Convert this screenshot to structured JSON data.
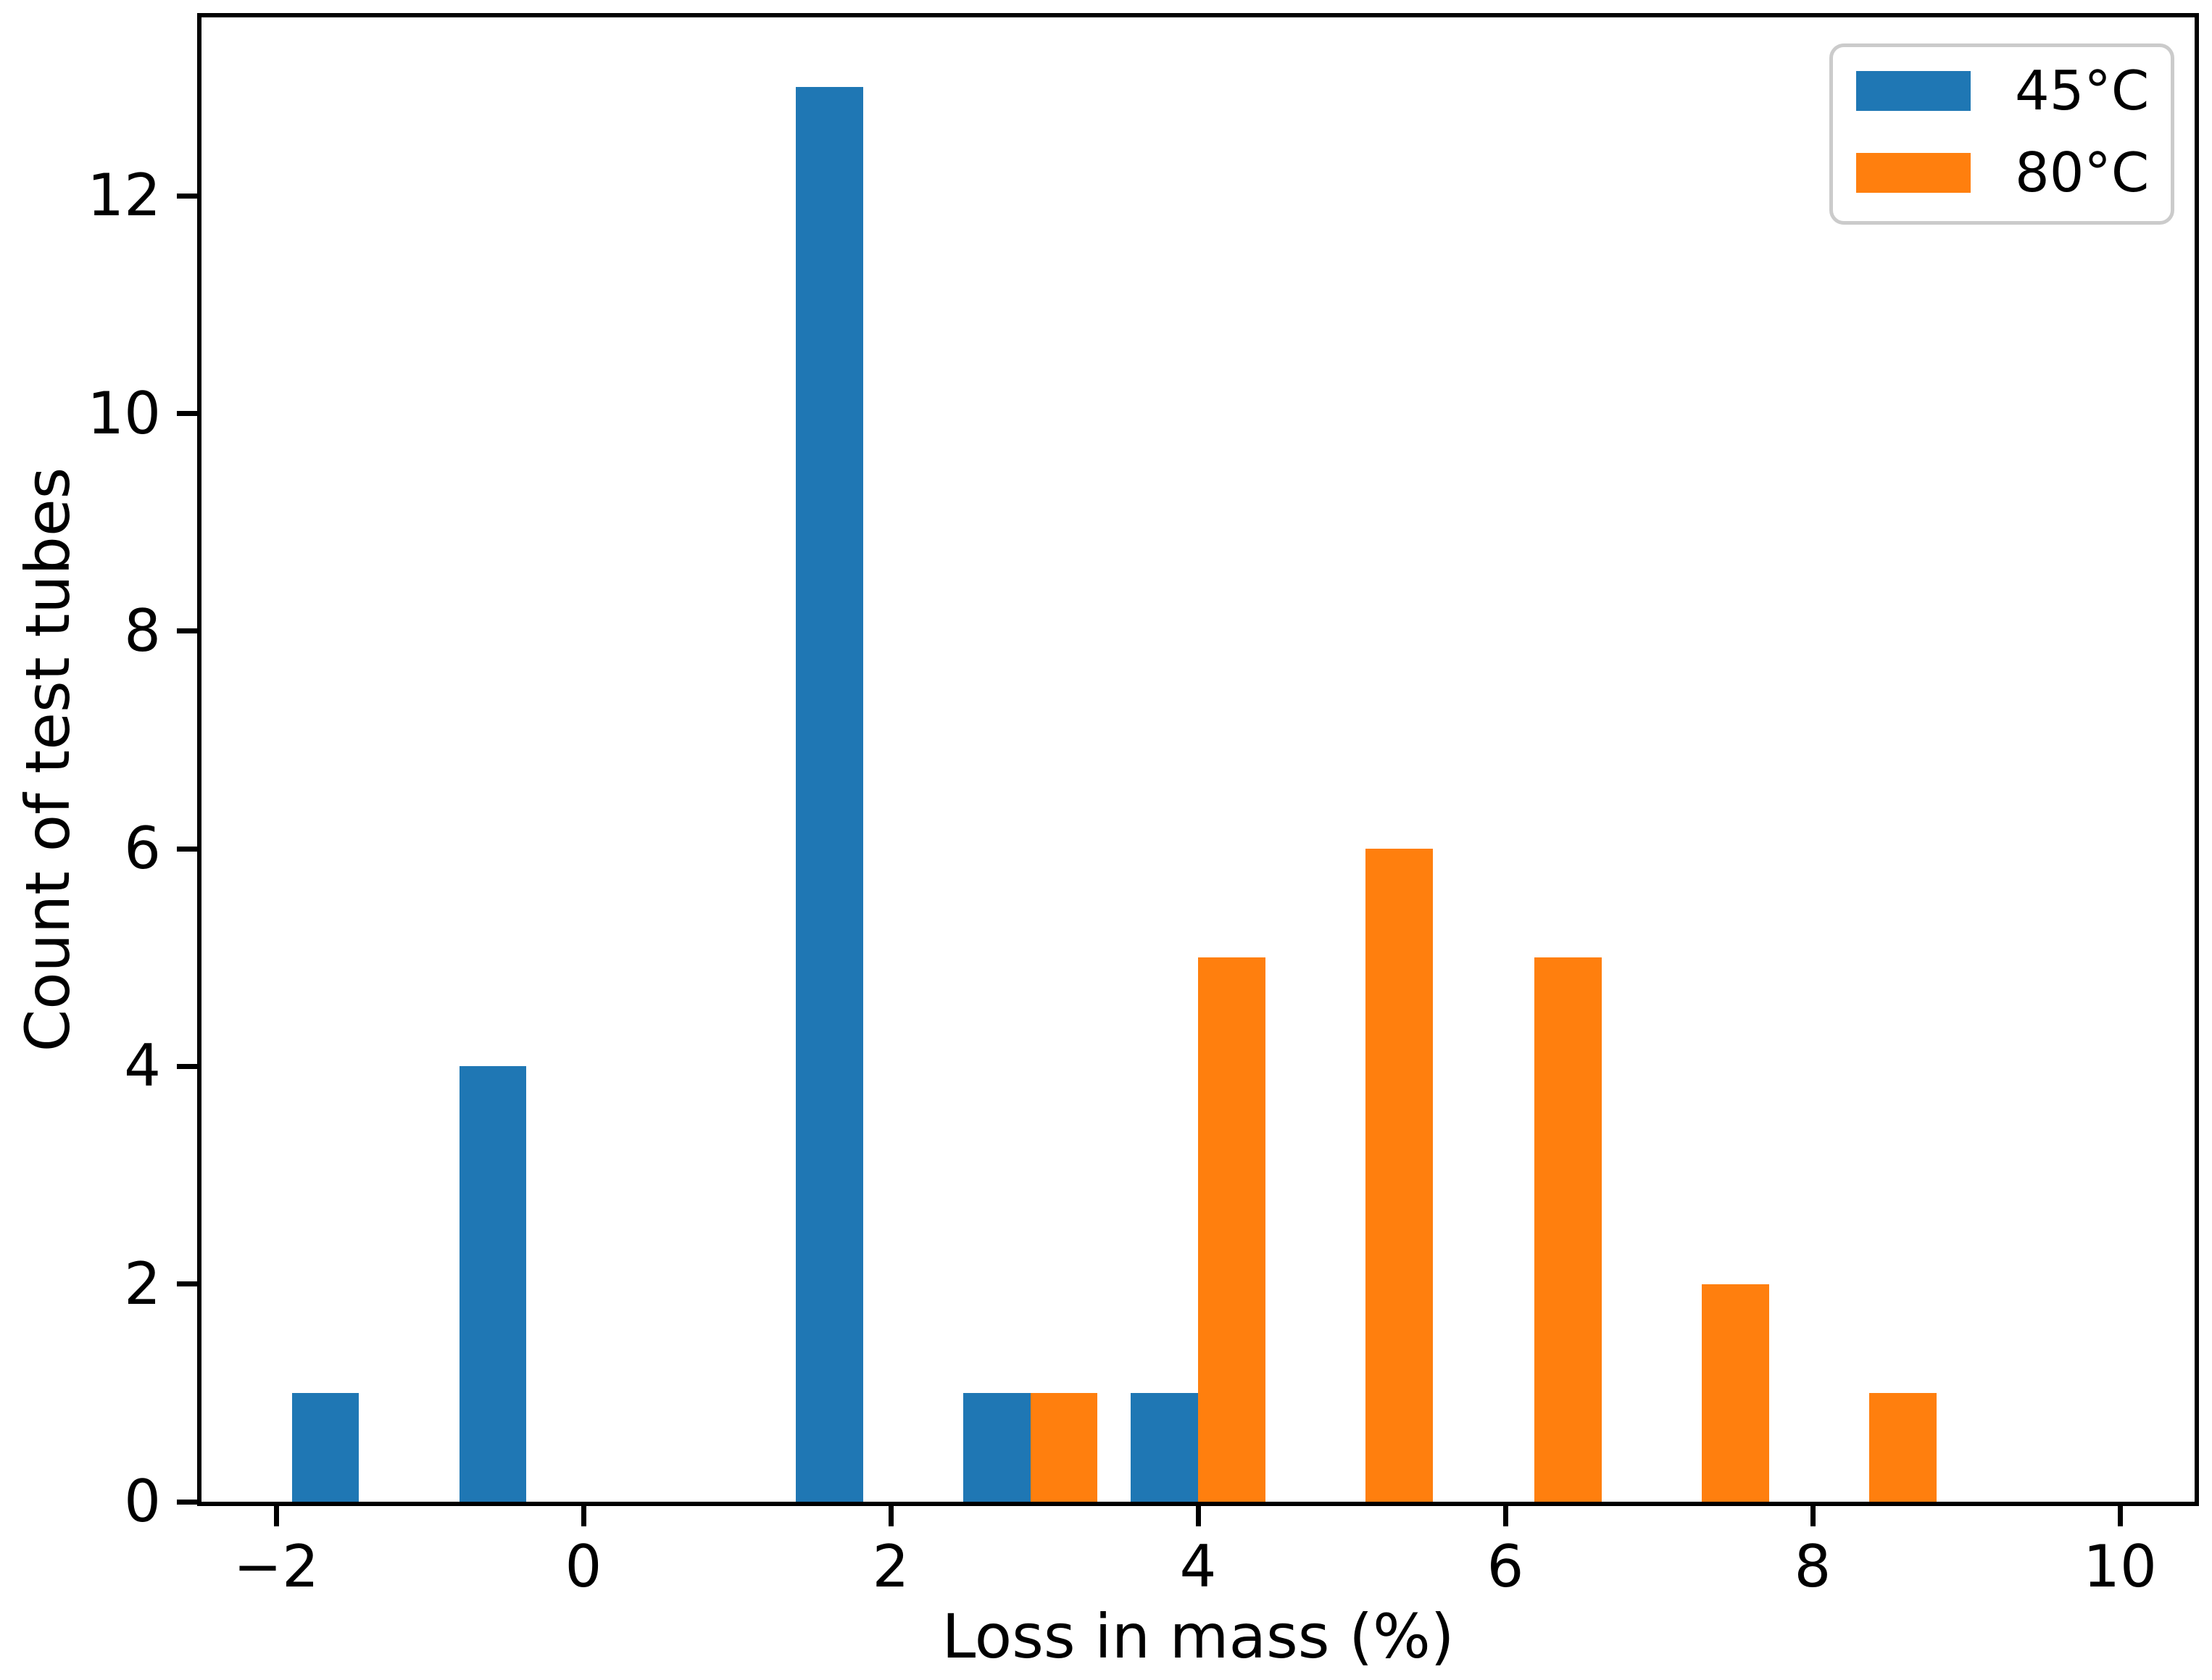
{
  "chart_data": {
    "type": "bar",
    "subtype": "grouped-histogram",
    "title": "",
    "xlabel": "Loss in mass (%)",
    "ylabel": "Count of test tubes",
    "xlim": [
      -2.486,
      10.486
    ],
    "ylim": [
      0,
      13.64
    ],
    "grid": false,
    "bin_edges": [
      -2.01,
      -0.92,
      0.18,
      1.27,
      2.36,
      3.46,
      4.55,
      5.64,
      6.73,
      7.83,
      8.92
    ],
    "bin_centers": [
      -1.46,
      -0.37,
      0.72,
      1.82,
      2.91,
      4.0,
      5.09,
      6.19,
      7.28,
      8.37
    ],
    "bar_width": 0.437,
    "series": [
      {
        "id": "45c",
        "name": "45°C",
        "color": "#1f77b4",
        "offset": -0.2185,
        "values": [
          1,
          4,
          0,
          13,
          1,
          1,
          0,
          0,
          0,
          0
        ]
      },
      {
        "id": "80c",
        "name": "80°C",
        "color": "#ff7f0e",
        "offset": 0.2185,
        "values": [
          0,
          0,
          0,
          0,
          1,
          5,
          6,
          5,
          2,
          1
        ]
      }
    ],
    "x_ticks": [
      -2,
      0,
      2,
      4,
      6,
      8,
      10
    ],
    "x_tick_labels": [
      "−2",
      "0",
      "2",
      "4",
      "6",
      "8",
      "10"
    ],
    "y_ticks": [
      0,
      2,
      4,
      6,
      8,
      10,
      12
    ],
    "y_tick_labels": [
      "0",
      "2",
      "4",
      "6",
      "8",
      "10",
      "12"
    ],
    "legend": {
      "position": "upper right",
      "border_color": "#cbcbcb",
      "items": [
        "45°C",
        "80°C"
      ]
    },
    "axis_color": "#000000",
    "background_color": "#ffffff"
  }
}
